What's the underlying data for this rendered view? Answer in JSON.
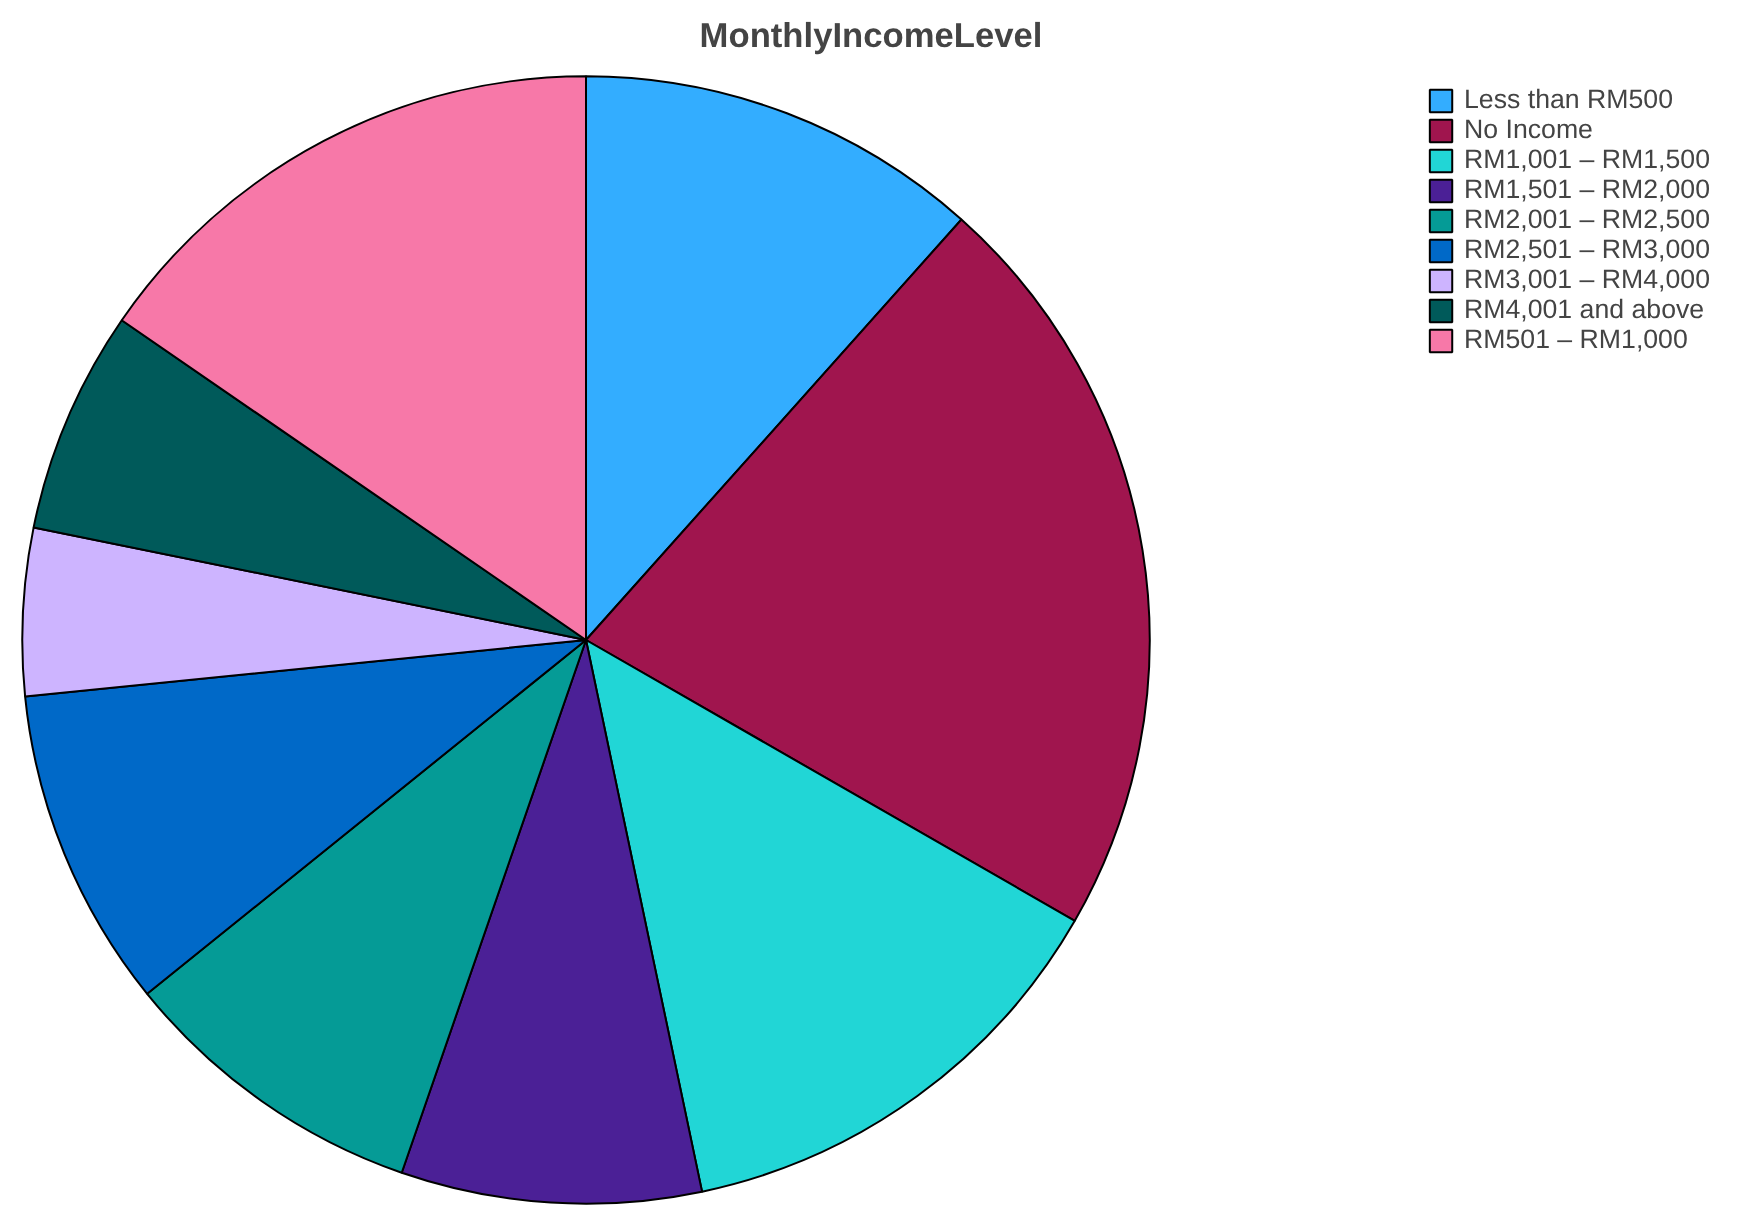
{
  "chart_data": {
    "type": "pie",
    "title": "MonthlyIncomeLevel",
    "categories": [
      "Less than RM500",
      "No Income",
      "RM1,001 – RM1,500",
      "RM1,501 – RM2,000",
      "RM2,001 – RM2,500",
      "RM2,501 – RM3,000",
      "RM3,001 – RM4,000",
      "RM4,001 and above",
      "RM501 – RM1,000"
    ],
    "values": [
      11.6,
      21.7,
      13.4,
      8.6,
      8.9,
      9.2,
      4.8,
      6.4,
      15.4
    ],
    "colors": [
      "#33adff",
      "#a0154e",
      "#21d6d6",
      "#4b2096",
      "#059b96",
      "#0069c8",
      "#cdb4ff",
      "#005a5a",
      "#f778a8"
    ],
    "legend": "top right"
  }
}
